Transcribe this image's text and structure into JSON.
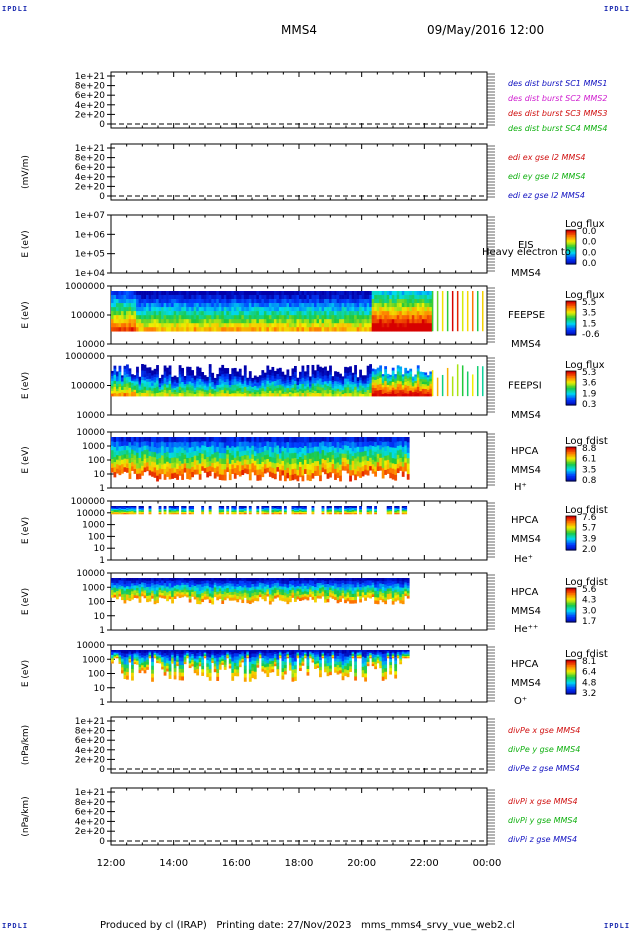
{
  "page": {
    "corner_labels": [
      "IPDLI",
      "IPDLI",
      "IPDLI",
      "IPDLI"
    ],
    "spacecraft": "MMS4",
    "datetime": "09/May/2016 12:00",
    "footer": "Produced by cl (IRAP)   Printing date: 27/Nov/2023   mms_mms4_srvy_vue_web2.cl",
    "time_ticks": [
      "12:00",
      "14:00",
      "16:00",
      "18:00",
      "20:00",
      "22:00",
      "00:00"
    ]
  },
  "chart_data": [
    {
      "type": "line",
      "panel": "des_dist",
      "ylabel": "",
      "ytick_labels": [
        "1e+21",
        "8e+20",
        "6e+20",
        "4e+20",
        "2e+20",
        "0"
      ],
      "ylim": [
        0,
        1e+21
      ],
      "series": [
        {
          "name": "des dist burst SC1 MMS1",
          "color": "#1010c0",
          "values": []
        },
        {
          "name": "des dist burst SC2 MMS2",
          "color": "#d020d0",
          "values": []
        },
        {
          "name": "des dist burst SC3 MMS3",
          "color": "#d01010",
          "values": []
        },
        {
          "name": "des dist burst SC4 MMS4",
          "color": "#10b010",
          "values": []
        }
      ],
      "reference_line": 0
    },
    {
      "type": "line",
      "panel": "edi",
      "ylabel": "(mV/m)",
      "ytick_labels": [
        "1e+21",
        "8e+20",
        "6e+20",
        "4e+20",
        "2e+20",
        "0"
      ],
      "ylim": [
        0,
        1e+21
      ],
      "series": [
        {
          "name": "edi ex gse l2 MMS4",
          "color": "#d01010",
          "values": []
        },
        {
          "name": "edi ey gse l2 MMS4",
          "color": "#10b010",
          "values": []
        },
        {
          "name": "edi ez gse l2 MMS4",
          "color": "#1010c0",
          "values": []
        }
      ],
      "reference_line": 0
    },
    {
      "type": "heatmap",
      "panel": "eis",
      "ylabel": "E (eV)",
      "ytick_labels": [
        "1e+07",
        "1e+06",
        "1e+05",
        "1e+04"
      ],
      "yscale": "log",
      "labels": [
        "EIS",
        "MMS4"
      ],
      "overlay_text": "Heavy electron to",
      "colorbar": {
        "title": "Log flux",
        "ticks": [
          "0.0",
          "0.0",
          "0.0",
          "0.0"
        ]
      }
    },
    {
      "type": "heatmap",
      "panel": "feepse",
      "ylabel": "E (eV)",
      "ytick_labels": [
        "1000000",
        "100000",
        "10000"
      ],
      "yscale": "log",
      "labels": [
        "FEEPSE",
        "MMS4"
      ],
      "colorbar": {
        "title": "Log flux",
        "ticks": [
          "5.5",
          "3.5",
          "1.5",
          "-0.6"
        ]
      }
    },
    {
      "type": "heatmap",
      "panel": "feepsi",
      "ylabel": "E (eV)",
      "ytick_labels": [
        "1000000",
        "100000",
        "10000"
      ],
      "yscale": "log",
      "labels": [
        "FEEPSI",
        "MMS4"
      ],
      "colorbar": {
        "title": "Log flux",
        "ticks": [
          "5.3",
          "3.6",
          "1.9",
          "0.3"
        ]
      }
    },
    {
      "type": "heatmap",
      "panel": "hpca_h",
      "ylabel": "E (eV)",
      "ytick_labels": [
        "10000",
        "1000",
        "100",
        "10",
        "1"
      ],
      "yscale": "log",
      "labels": [
        "HPCA",
        "MMS4",
        "H⁺"
      ],
      "colorbar": {
        "title": "Log fdist",
        "ticks": [
          "8.8",
          "6.1",
          "3.5",
          "0.8"
        ]
      }
    },
    {
      "type": "heatmap",
      "panel": "hpca_he",
      "ylabel": "E (eV)",
      "ytick_labels": [
        "100000",
        "10000",
        "1000",
        "100",
        "10",
        "1"
      ],
      "yscale": "log",
      "labels": [
        "HPCA",
        "MMS4",
        "He⁺"
      ],
      "colorbar": {
        "title": "Log fdist",
        "ticks": [
          "7.6",
          "5.7",
          "3.9",
          "2.0"
        ]
      }
    },
    {
      "type": "heatmap",
      "panel": "hpca_hepp",
      "ylabel": "E (eV)",
      "ytick_labels": [
        "10000",
        "1000",
        "100",
        "10",
        "1"
      ],
      "yscale": "log",
      "labels": [
        "HPCA",
        "MMS4",
        "He⁺⁺"
      ],
      "colorbar": {
        "title": "Log fdist",
        "ticks": [
          "5.6",
          "4.3",
          "3.0",
          "1.7"
        ]
      }
    },
    {
      "type": "heatmap",
      "panel": "hpca_o",
      "ylabel": "E (eV)",
      "ytick_labels": [
        "10000",
        "1000",
        "100",
        "10",
        "1"
      ],
      "yscale": "log",
      "labels": [
        "HPCA",
        "MMS4",
        "O⁺"
      ],
      "colorbar": {
        "title": "Log fdist",
        "ticks": [
          "8.1",
          "6.4",
          "4.8",
          "3.2"
        ]
      }
    },
    {
      "type": "line",
      "panel": "divpe",
      "ylabel": "(nPa/km)",
      "ytick_labels": [
        "1e+21",
        "8e+20",
        "6e+20",
        "4e+20",
        "2e+20",
        "0"
      ],
      "ylim": [
        0,
        1e+21
      ],
      "series": [
        {
          "name": "divPe x gse MMS4",
          "color": "#d01010",
          "values": []
        },
        {
          "name": "divPe y gse MMS4",
          "color": "#10b010",
          "values": []
        },
        {
          "name": "divPe z gse MMS4",
          "color": "#1010c0",
          "values": []
        }
      ],
      "reference_line": 0
    },
    {
      "type": "line",
      "panel": "divpi",
      "ylabel": "(nPa/km)",
      "ytick_labels": [
        "1e+21",
        "8e+20",
        "6e+20",
        "4e+20",
        "2e+20",
        "0"
      ],
      "ylim": [
        0,
        1e+21
      ],
      "series": [
        {
          "name": "divPi x gse MMS4",
          "color": "#d01010",
          "values": []
        },
        {
          "name": "divPi y gse MMS4",
          "color": "#10b010",
          "values": []
        },
        {
          "name": "divPi z gse MMS4",
          "color": "#1010c0",
          "values": []
        }
      ],
      "reference_line": 0
    }
  ]
}
